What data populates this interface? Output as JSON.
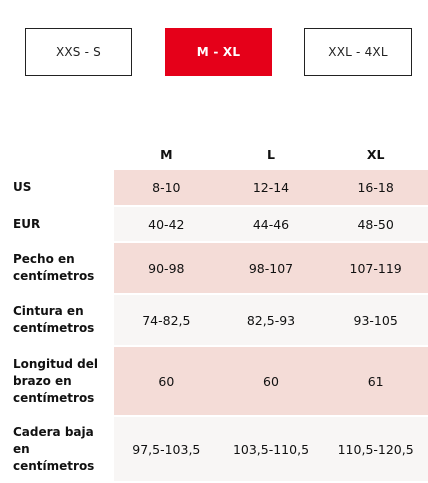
{
  "size_tabs": [
    {
      "label": "XXS - S",
      "active": false
    },
    {
      "label": "M - XL",
      "active": true
    },
    {
      "label": "XXL - 4XL",
      "active": false
    }
  ],
  "colors": {
    "active_tab": "#e50019",
    "row_highlight": "#f4dcd7",
    "row_alternate": "#f8f6f5"
  },
  "table": {
    "columns": [
      "M",
      "L",
      "XL"
    ],
    "rows": [
      {
        "label": "US",
        "values": [
          "8-10",
          "12-14",
          "16-18"
        ]
      },
      {
        "label": "EUR",
        "values": [
          "40-42",
          "44-46",
          "48-50"
        ]
      },
      {
        "label": "Pecho en\ncentímetros",
        "values": [
          "90-98",
          "98-107",
          "107-119"
        ]
      },
      {
        "label": "Cintura en\ncentímetros",
        "values": [
          "74-82,5",
          "82,5-93",
          "93-105"
        ]
      },
      {
        "label": "Longitud del\nbrazo en\ncentímetros",
        "values": [
          "60",
          "60",
          "61"
        ]
      },
      {
        "label": "Cadera baja\nen\ncentímetros",
        "values": [
          "97,5-103,5",
          "103,5-110,5",
          "110,5-120,5"
        ]
      }
    ]
  }
}
